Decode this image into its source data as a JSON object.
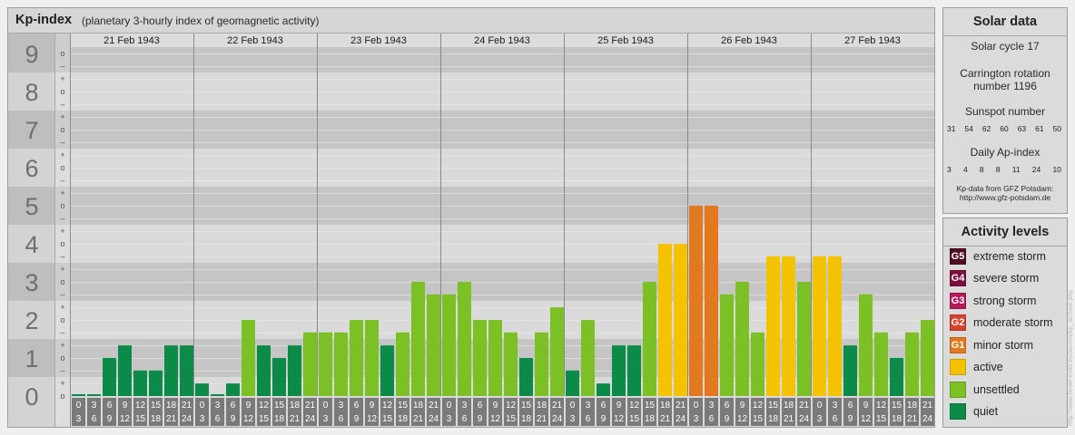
{
  "chart_data": {
    "type": "bar",
    "title": "Kp-index",
    "subtitle": "(planetary 3-hourly index of geomagnetic activity)",
    "ylim": [
      0,
      9
    ],
    "grid": true,
    "legend_position": "right",
    "y_tick_labels": [
      "9",
      "8",
      "7",
      "6",
      "5",
      "4",
      "3",
      "2",
      "1",
      "0"
    ],
    "y_minor_tick_labels": [
      "o",
      "–",
      "+",
      "o",
      "–",
      "+",
      "o",
      "–",
      "+",
      "o",
      "–",
      "+",
      "o",
      "–",
      "+",
      "o",
      "–",
      "+",
      "o",
      "–",
      "+",
      "o",
      "–",
      "+",
      "o",
      "–",
      "+",
      "o"
    ],
    "interval_labels": [
      [
        "0",
        "3"
      ],
      [
        "3",
        "6"
      ],
      [
        "6",
        "9"
      ],
      [
        "9",
        "12"
      ],
      [
        "12",
        "15"
      ],
      [
        "15",
        "18"
      ],
      [
        "18",
        "21"
      ],
      [
        "21",
        "24"
      ]
    ],
    "days": [
      {
        "date": "21 Feb 1943",
        "kp": [
          0,
          0,
          1,
          1.33,
          0.67,
          0.67,
          1.33,
          1.33
        ]
      },
      {
        "date": "22 Feb 1943",
        "kp": [
          0.33,
          0,
          0.33,
          2,
          1.33,
          1,
          1.33,
          1.67
        ]
      },
      {
        "date": "23 Feb 1943",
        "kp": [
          1.67,
          1.67,
          2,
          2,
          1.33,
          1.67,
          3,
          2.67
        ]
      },
      {
        "date": "24 Feb 1943",
        "kp": [
          2.67,
          3,
          2,
          2,
          1.67,
          1,
          1.67,
          2.33
        ]
      },
      {
        "date": "25 Feb 1943",
        "kp": [
          0.67,
          2,
          0.33,
          1.33,
          1.33,
          3,
          4,
          4
        ]
      },
      {
        "date": "26 Feb 1943",
        "kp": [
          5,
          5,
          2.67,
          3,
          1.67,
          3.67,
          3.67,
          3
        ]
      },
      {
        "date": "27 Feb 1943",
        "kp": [
          3.67,
          3.67,
          1.33,
          2.67,
          1.67,
          1,
          1.67,
          2
        ]
      }
    ]
  },
  "solar_data": {
    "title": "Solar data",
    "solar_cycle": "Solar cycle 17",
    "carrington_line1": "Carrington rotation",
    "carrington_line2": "number 1196",
    "sunspot_title": "Sunspot number",
    "sunspot_numbers": [
      31,
      54,
      62,
      60,
      63,
      61,
      50
    ],
    "ap_title": "Daily Ap-index",
    "ap_values": [
      3,
      4,
      8,
      8,
      11,
      24,
      10
    ],
    "source_line1": "Kp-data from GFZ Potsdam:",
    "source_line2": "http://www.gfz-potsdam.de"
  },
  "activity_levels": {
    "title": "Activity levels",
    "items": [
      {
        "badge": "G5",
        "label": "extreme storm",
        "color": "#4f0b22"
      },
      {
        "badge": "G4",
        "label": "severe storm",
        "color": "#7b0e3e"
      },
      {
        "badge": "G3",
        "label": "strong storm",
        "color": "#b21a5a"
      },
      {
        "badge": "G2",
        "label": "moderate storm",
        "color": "#d6432b"
      },
      {
        "badge": "G1",
        "label": "minor storm",
        "color": "#e3791f"
      },
      {
        "badge": "",
        "label": "active",
        "color": "#f5c200"
      },
      {
        "badge": "",
        "label": "unsettled",
        "color": "#7bc024"
      },
      {
        "badge": "",
        "label": "quiet",
        "color": "#0c8a48"
      }
    ]
  },
  "watermark": "http://www.fieser-euler.eu/aurora/kp_archive.php"
}
